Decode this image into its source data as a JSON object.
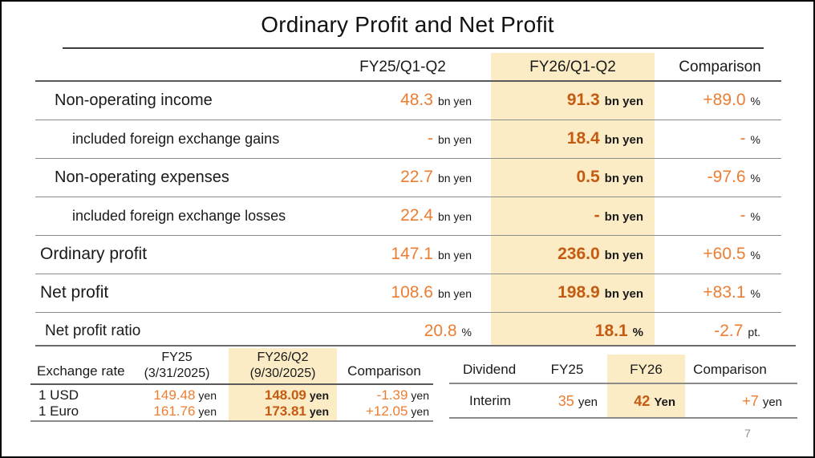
{
  "title": "Ordinary Profit and Net Profit",
  "page_number": "7",
  "colors": {
    "highlight": "#fbecc6",
    "value_orange": "#ed7d31",
    "value_dark_orange_bold": "#c55a11",
    "text": "#1a1a1a",
    "line_gray": "#8c8c8c"
  },
  "main_table": {
    "columns": [
      "FY25/Q1-Q2",
      "FY26/Q1-Q2",
      "Comparison"
    ],
    "rows": [
      {
        "label": "Non-operating income",
        "fy25": {
          "value": "48.3",
          "unit": "bn yen"
        },
        "fy26": {
          "value": "91.3",
          "unit": "bn yen"
        },
        "comparison": {
          "value": "+89.0",
          "unit": "%"
        }
      },
      {
        "label": "included foreign exchange gains",
        "fy25": {
          "value": "-",
          "unit": "bn yen"
        },
        "fy26": {
          "value": "18.4",
          "unit": "bn yen"
        },
        "comparison": {
          "value": "-",
          "unit": "%"
        }
      },
      {
        "label": "Non-operating expenses",
        "fy25": {
          "value": "22.7",
          "unit": "bn yen"
        },
        "fy26": {
          "value": "0.5",
          "unit": "bn yen"
        },
        "comparison": {
          "value": "-97.6",
          "unit": "%"
        }
      },
      {
        "label": "included foreign exchange losses",
        "fy25": {
          "value": "22.4",
          "unit": "bn yen"
        },
        "fy26": {
          "value": "-",
          "unit": "bn yen"
        },
        "comparison": {
          "value": "-",
          "unit": "%"
        }
      },
      {
        "label": "Ordinary profit",
        "fy25": {
          "value": "147.1",
          "unit": "bn yen"
        },
        "fy26": {
          "value": "236.0",
          "unit": "bn yen"
        },
        "comparison": {
          "value": "+60.5",
          "unit": "%"
        }
      },
      {
        "label": "Net profit",
        "fy25": {
          "value": "108.6",
          "unit": "bn yen"
        },
        "fy26": {
          "value": "198.9",
          "unit": "bn yen"
        },
        "comparison": {
          "value": "+83.1",
          "unit": "%"
        }
      },
      {
        "label": "Net profit ratio",
        "fy25": {
          "value": "20.8",
          "unit": "%"
        },
        "fy26": {
          "value": "18.1",
          "unit": "%"
        },
        "comparison": {
          "value": "-2.7",
          "unit": "pt."
        }
      }
    ]
  },
  "exchange_table": {
    "header": {
      "label": "Exchange rate",
      "fy25_line1": "FY25",
      "fy25_line2": "(3/31/2025)",
      "fy26_line1": "FY26/Q2",
      "fy26_line2": "(9/30/2025)",
      "comparison": "Comparison"
    },
    "rows": [
      {
        "label": "1 USD",
        "fy25": {
          "value": "149.48",
          "unit": "yen"
        },
        "fy26": {
          "value": "148.09",
          "unit": "yen"
        },
        "comparison": {
          "value": "-1.39",
          "unit": "yen"
        }
      },
      {
        "label": "1 Euro",
        "fy25": {
          "value": "161.76",
          "unit": "yen"
        },
        "fy26": {
          "value": "173.81",
          "unit": "yen"
        },
        "comparison": {
          "value": "+12.05",
          "unit": "yen"
        }
      }
    ]
  },
  "dividend_table": {
    "header": {
      "label": "Dividend",
      "fy25": "FY25",
      "fy26": "FY26",
      "comparison": "Comparison"
    },
    "rows": [
      {
        "label": "Interim",
        "fy25": {
          "value": "35",
          "unit": "yen"
        },
        "fy26": {
          "value": "42",
          "unit": "Yen"
        },
        "comparison": {
          "value": "+7",
          "unit": "yen"
        }
      }
    ]
  }
}
